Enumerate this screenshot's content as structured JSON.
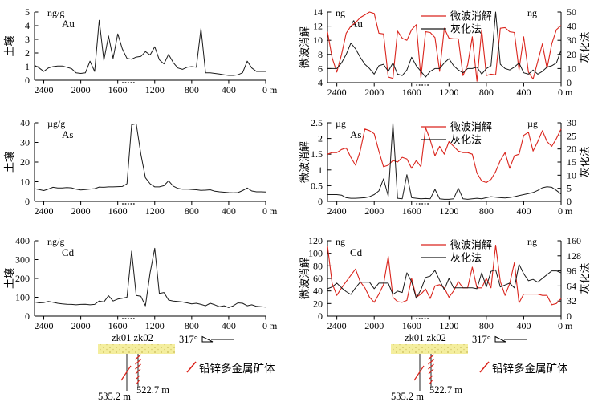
{
  "colors": {
    "series_red": "#da251d",
    "series_black": "#1a1a1a",
    "surface_bar_fill": "#f4ee9e",
    "surface_bar_speckle": "#c9ba57",
    "axis": "#000000"
  },
  "x_m": [
    2500,
    2450,
    2400,
    2350,
    2300,
    2250,
    2200,
    2150,
    2100,
    2050,
    2000,
    1950,
    1900,
    1850,
    1800,
    1750,
    1700,
    1650,
    1600,
    1550,
    1500,
    1450,
    1400,
    1350,
    1300,
    1250,
    1200,
    1150,
    1100,
    1050,
    1000,
    950,
    900,
    850,
    800,
    750,
    700,
    650,
    600,
    550,
    500,
    450,
    400,
    350,
    300,
    250,
    200,
    150,
    100,
    50,
    0
  ],
  "x_axis": {
    "xlim": [
      2500,
      0
    ],
    "tick_values": [
      2400,
      2000,
      1600,
      1200,
      800,
      400,
      0
    ],
    "tick_labels": [
      "2400",
      "2000",
      "1600",
      "1200",
      "800",
      "400",
      "0 m"
    ]
  },
  "drill_marker_m": [
    1545,
    1515,
    1485,
    1455,
    1425
  ],
  "chart_data": [
    {
      "id": "soil-au",
      "type": "line",
      "element": "Au",
      "unit": "ng/g",
      "ylabel": "土壤",
      "ylim": [
        0,
        5
      ],
      "yticks": [
        0,
        1,
        2,
        3,
        4,
        5
      ],
      "series": [
        {
          "name": "土壤",
          "axis": "left",
          "color": "#1a1a1a",
          "values": [
            1.1,
            0.9,
            0.65,
            0.9,
            1.0,
            1.05,
            1.05,
            0.95,
            0.85,
            0.55,
            0.5,
            0.55,
            1.4,
            0.65,
            4.4,
            1.45,
            3.25,
            1.6,
            3.4,
            2.3,
            1.6,
            1.55,
            1.7,
            1.75,
            2.1,
            1.85,
            2.45,
            1.5,
            1.2,
            1.9,
            1.3,
            0.9,
            0.8,
            0.95,
            1.0,
            0.95,
            3.8,
            0.55,
            0.55,
            0.5,
            0.45,
            0.4,
            0.35,
            0.35,
            0.4,
            0.55,
            1.4,
            0.9,
            0.65,
            0.65,
            0.65
          ]
        }
      ]
    },
    {
      "id": "compare-au",
      "type": "line",
      "element": "Au",
      "unit_left": "ng",
      "unit_right": "ng",
      "ylabel_left": "微波消解",
      "ylabel_right": "灰化法",
      "ylim_left": [
        4,
        14
      ],
      "yticks_left": [
        4,
        6,
        8,
        10,
        12,
        14
      ],
      "ylim_right": [
        0,
        50
      ],
      "yticks_right": [
        0,
        10,
        20,
        30,
        40,
        50
      ],
      "legend": [
        "微波消解",
        "灰化法"
      ],
      "series": [
        {
          "name": "微波消解",
          "axis": "left",
          "color": "#da251d",
          "values": [
            11.2,
            7.5,
            5.5,
            8.0,
            11.0,
            12.0,
            12.5,
            13.2,
            13.6,
            14.0,
            13.8,
            11.0,
            10.9,
            4.8,
            4.6,
            11.3,
            10.3,
            10.0,
            11.5,
            12.2,
            4.7,
            11.2,
            11.1,
            10.4,
            5.6,
            11.7,
            10.3,
            10.2,
            10.2,
            5.0,
            6.5,
            10.5,
            4.2,
            11.5,
            5.0,
            5.2,
            5.1,
            11.7,
            11.8,
            11.2,
            11.1,
            5.8,
            10.5,
            5.5,
            4.5,
            7.0,
            9.5,
            6.0,
            9.5,
            11.5,
            12.1
          ]
        },
        {
          "name": "灰化法",
          "axis": "right",
          "color": "#1a1a1a",
          "values": [
            10,
            10,
            10,
            14,
            20,
            28,
            24,
            18,
            13,
            10,
            6,
            12,
            13,
            8,
            14,
            6,
            5,
            9,
            18,
            12,
            8,
            4,
            8,
            10,
            10,
            14,
            17,
            12,
            9,
            7,
            10,
            10,
            11,
            6,
            10,
            12,
            50,
            13,
            10,
            9,
            11,
            14,
            7,
            6,
            9,
            6,
            8,
            11,
            12,
            14,
            23
          ]
        }
      ]
    },
    {
      "id": "soil-as",
      "type": "line",
      "element": "As",
      "unit": "µg/g",
      "ylabel": "土壤",
      "ylim": [
        0,
        40
      ],
      "yticks": [
        0,
        10,
        20,
        30,
        40
      ],
      "series": [
        {
          "name": "土壤",
          "axis": "left",
          "color": "#1a1a1a",
          "values": [
            6.5,
            6.0,
            5.5,
            6.3,
            7.2,
            6.8,
            6.8,
            7.0,
            6.9,
            6.2,
            5.8,
            6.0,
            6.3,
            6.5,
            7.3,
            7.2,
            7.4,
            7.4,
            7.5,
            7.6,
            9.0,
            39.0,
            39.5,
            24.0,
            12.0,
            9.0,
            7.4,
            7.4,
            8.0,
            10.5,
            7.8,
            6.6,
            6.2,
            6.3,
            6.1,
            5.9,
            5.6,
            5.7,
            5.9,
            5.2,
            4.9,
            4.7,
            4.5,
            4.4,
            4.5,
            5.5,
            6.8,
            5.3,
            4.9,
            4.9,
            4.8
          ]
        }
      ]
    },
    {
      "id": "compare-as",
      "type": "line",
      "element": "As",
      "unit_left": "µg",
      "unit_right": "µg",
      "ylabel_left": "微波消解",
      "ylabel_right": "灰化法",
      "ylim_left": [
        0,
        2.5
      ],
      "yticks_left": [
        0,
        0.5,
        1,
        1.5,
        2,
        2.5
      ],
      "ylim_right": [
        0,
        30
      ],
      "yticks_right": [
        0,
        5,
        10,
        15,
        20,
        25,
        30
      ],
      "legend": [
        "微波消解",
        "灰化法"
      ],
      "series": [
        {
          "name": "微波消解",
          "axis": "left",
          "color": "#da251d",
          "values": [
            1.5,
            1.55,
            1.55,
            1.65,
            1.7,
            1.4,
            1.15,
            1.6,
            2.3,
            2.25,
            2.15,
            1.6,
            1.1,
            1.15,
            1.3,
            1.25,
            1.4,
            1.35,
            1.05,
            1.3,
            1.1,
            2.35,
            1.95,
            1.45,
            1.75,
            1.5,
            1.9,
            1.75,
            1.6,
            1.55,
            1.55,
            1.5,
            0.9,
            0.65,
            0.6,
            0.7,
            0.95,
            1.3,
            1.55,
            1.05,
            1.45,
            1.5,
            2.1,
            2.2,
            1.6,
            1.9,
            2.25,
            1.9,
            1.75,
            2.0,
            2.3
          ]
        },
        {
          "name": "灰化法",
          "axis": "right",
          "color": "#1a1a1a",
          "values": [
            2.6,
            2.6,
            2.6,
            2.4,
            1.4,
            1.2,
            1.2,
            1.3,
            1.4,
            1.8,
            2.6,
            4.0,
            8.6,
            2.0,
            30.0,
            1.2,
            1.0,
            10.2,
            1.4,
            1.2,
            1.0,
            1.1,
            1.0,
            4.6,
            1.0,
            0.8,
            0.8,
            1.0,
            5.0,
            1.0,
            0.8,
            1.0,
            1.2,
            1.0,
            1.4,
            1.8,
            1.6,
            1.4,
            1.3,
            1.5,
            1.8,
            2.2,
            2.6,
            3.0,
            3.4,
            4.2,
            5.2,
            5.6,
            5.4,
            4.2,
            2.8
          ]
        }
      ]
    },
    {
      "id": "soil-cd",
      "type": "line",
      "element": "Cd",
      "unit": "ng/g",
      "ylabel": "土壤",
      "ylim": [
        0,
        400
      ],
      "yticks": [
        0,
        100,
        200,
        300,
        400
      ],
      "series": [
        {
          "name": "土壤",
          "axis": "left",
          "color": "#1a1a1a",
          "values": [
            75,
            70,
            72,
            78,
            73,
            68,
            65,
            63,
            62,
            60,
            62,
            63,
            60,
            62,
            80,
            75,
            108,
            80,
            90,
            95,
            100,
            345,
            110,
            105,
            55,
            230,
            360,
            120,
            125,
            85,
            80,
            78,
            75,
            70,
            65,
            68,
            62,
            55,
            68,
            60,
            50,
            55,
            45,
            55,
            70,
            68,
            55,
            60,
            52,
            50,
            48
          ]
        }
      ]
    },
    {
      "id": "compare-cd",
      "type": "line",
      "element": "Cd",
      "unit_left": "ng",
      "unit_right": "ng",
      "ylabel_left": "微波消解",
      "ylabel_right": "灰化法",
      "ylim_left": [
        0,
        120
      ],
      "yticks_left": [
        0,
        20,
        40,
        60,
        80,
        100,
        120
      ],
      "ylim_right": [
        0,
        160
      ],
      "yticks_right": [
        0,
        32,
        64,
        96,
        128,
        160
      ],
      "legend": [
        "微波消解",
        "灰化法"
      ],
      "series": [
        {
          "name": "微波消解",
          "axis": "left",
          "color": "#da251d",
          "values": [
            112,
            52,
            33,
            45,
            55,
            65,
            75,
            55,
            45,
            30,
            22,
            35,
            50,
            95,
            30,
            23,
            22,
            25,
            60,
            30,
            35,
            43,
            28,
            48,
            50,
            45,
            30,
            40,
            55,
            45,
            45,
            78,
            45,
            45,
            60,
            45,
            113,
            55,
            33,
            52,
            85,
            21,
            35,
            35,
            35,
            35,
            33,
            33,
            18,
            20,
            28
          ]
        },
        {
          "name": "灰化法",
          "axis": "right",
          "color": "#1a1a1a",
          "values": [
            58,
            62,
            70,
            60,
            52,
            46,
            60,
            72,
            72,
            72,
            58,
            70,
            70,
            70,
            46,
            53,
            50,
            92,
            73,
            38,
            56,
            82,
            85,
            97,
            76,
            56,
            80,
            60,
            60,
            60,
            60,
            60,
            58,
            92,
            62,
            95,
            98,
            62,
            66,
            70,
            60,
            110,
            90,
            75,
            78,
            72,
            80,
            88,
            96,
            96,
            92
          ]
        }
      ]
    }
  ],
  "annotation": {
    "holes_label": "zk01 zk02",
    "depth_zk01": "535.2 m",
    "depth_zk02": "522.7 m",
    "azimuth": "317°",
    "ore_label": "铅锌多金属矿体"
  }
}
